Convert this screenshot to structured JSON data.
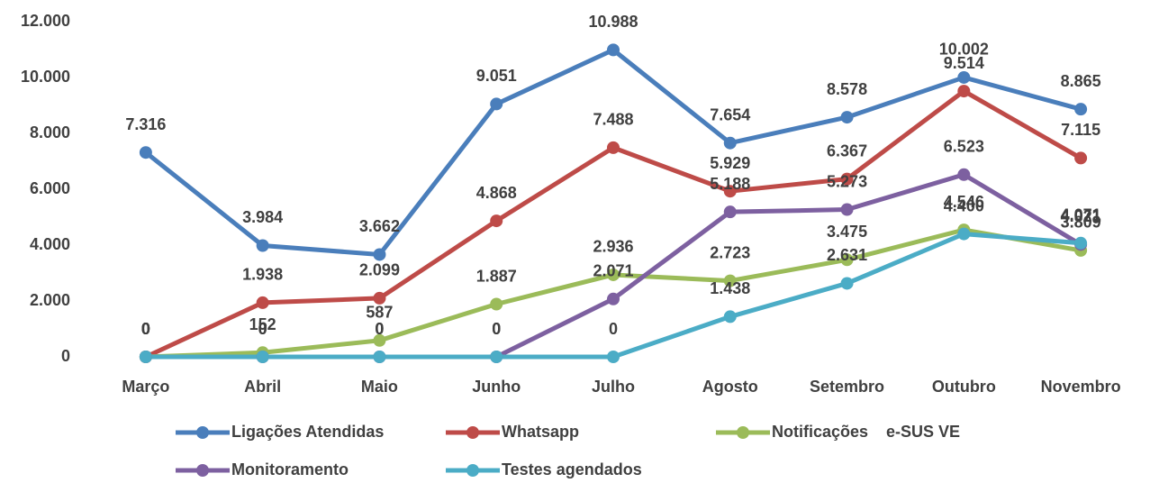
{
  "chart_data": {
    "type": "line",
    "categories": [
      "Março",
      "Abril",
      "Maio",
      "Junho",
      "Julho",
      "Agosto",
      "Setembro",
      "Outubro",
      "Novembro"
    ],
    "series": [
      {
        "name": "Ligações Atendidas",
        "color": "#4a7ebb",
        "values": [
          7316,
          3984,
          3662,
          9051,
          10988,
          7654,
          8578,
          10002,
          8865
        ],
        "value_labels": [
          "7.316",
          "3.984",
          "3.662",
          "9.051",
          "10.988",
          "7.654",
          "8.578",
          "10.002",
          "8.865"
        ]
      },
      {
        "name": "Whatsapp",
        "color": "#be4b48",
        "values": [
          0,
          1938,
          2099,
          4868,
          7488,
          5929,
          6367,
          9514,
          7115
        ],
        "value_labels": [
          "0",
          "1.938",
          "2.099",
          "4.868",
          "7.488",
          "5.929",
          "6.367",
          "9.514",
          "7.115"
        ]
      },
      {
        "name": "Notificações    e-SUS VE",
        "color": "#9bbb59",
        "values": [
          0,
          152,
          587,
          1887,
          2936,
          2723,
          3475,
          4546,
          3809
        ],
        "value_labels": [
          "0",
          "152",
          "587",
          "1.887",
          "2.936",
          "2.723",
          "3.475",
          "4.546",
          "3.809"
        ]
      },
      {
        "name": "Monitoramento",
        "color": "#7d60a0",
        "values": [
          0,
          0,
          0,
          0,
          2071,
          5188,
          5273,
          6523,
          4021
        ],
        "value_labels": [
          "0",
          "0",
          "0",
          "0",
          "2.071",
          "5.188",
          "5.273",
          "6.523",
          "4.021"
        ]
      },
      {
        "name": "Testes agendados",
        "color": "#4bacc6",
        "values": [
          0,
          0,
          0,
          0,
          0,
          1438,
          2631,
          4400,
          4071
        ],
        "value_labels": [
          "0",
          "0",
          "0",
          "0",
          "0",
          "1.438",
          "2.631",
          "4.400",
          "4.071"
        ]
      }
    ],
    "ylim": [
      0,
      12000
    ],
    "yticks": [
      0,
      {
        "value": 2000,
        "label": "2.000"
      },
      {
        "value": 4000,
        "label": "4.000"
      },
      {
        "value": 6000,
        "label": "6.000"
      },
      {
        "value": 8000,
        "label": "8.000"
      },
      {
        "value": 10000,
        "label": "10.000"
      },
      {
        "value": 12000,
        "label": "12.000"
      }
    ],
    "grid": false
  }
}
